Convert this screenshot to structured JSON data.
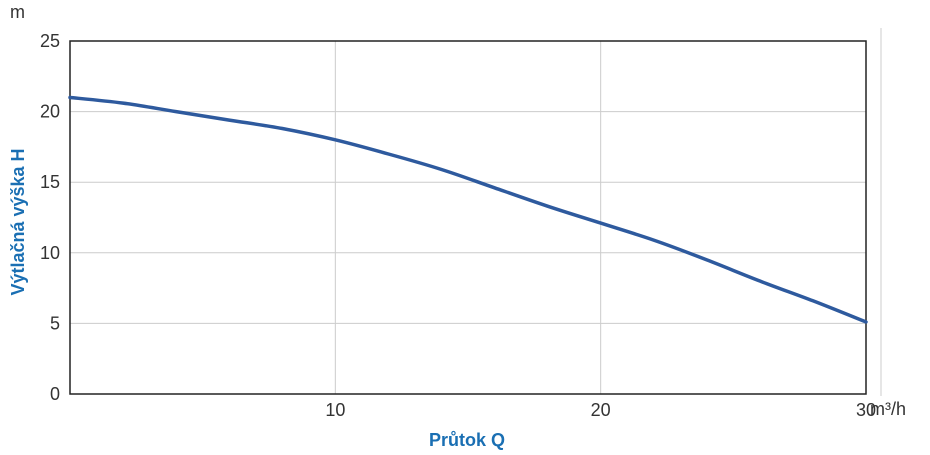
{
  "chart_data": {
    "type": "line",
    "xlabel": "Průtok Q",
    "ylabel": "Výtlačná výška H",
    "x_unit": "m³/h",
    "y_unit": "m",
    "xlim": [
      0,
      30
    ],
    "ylim": [
      0,
      25
    ],
    "x_ticks": [
      "10",
      "20",
      "30"
    ],
    "y_ticks": [
      "0",
      "5",
      "10",
      "15",
      "20",
      "25"
    ],
    "grid": true,
    "series": [
      {
        "x": [
          0,
          2,
          4,
          6,
          8,
          10,
          12,
          14,
          16,
          18,
          20,
          22,
          24,
          26,
          28,
          30
        ],
        "y": [
          21.0,
          20.6,
          20.0,
          19.4,
          18.8,
          18.0,
          17.0,
          15.9,
          14.6,
          13.3,
          12.1,
          10.9,
          9.5,
          8.0,
          6.6,
          5.1
        ]
      }
    ],
    "colors": {
      "line": "#2e5a9e",
      "axis_title": "#1a6fb3",
      "grid": "#cccccc",
      "frame": "#222222"
    }
  }
}
